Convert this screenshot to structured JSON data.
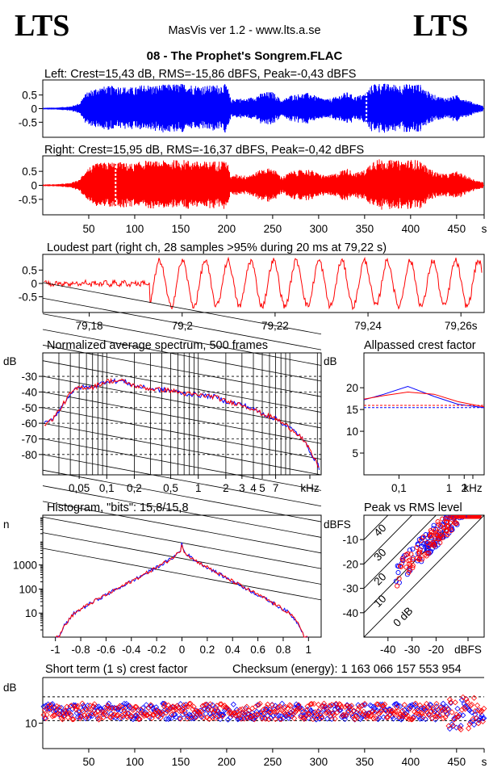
{
  "header": {
    "logo_left": "LTS",
    "logo_right": "LTS",
    "app_title": "MasVis ver 1.2 - www.lts.a.se",
    "file_title": "08 - The Prophet's Songrem.FLAC"
  },
  "colors": {
    "left_channel": "#0000ff",
    "right_channel": "#ff0000",
    "grid": "#000000"
  },
  "chart_data": [
    {
      "id": "left",
      "type": "area",
      "title": "Left: Crest=15,43 dB, RMS=-15,86 dBFS, Peak=-0,43 dBFS",
      "yticks": [
        "0.5",
        "0",
        "-0.5"
      ],
      "ylim": [
        -1,
        1
      ],
      "xlim": [
        0,
        480
      ],
      "envelope_t": [
        0,
        15,
        30,
        40,
        45,
        50,
        55,
        60,
        70,
        80,
        90,
        100,
        110,
        120,
        130,
        140,
        150,
        160,
        170,
        180,
        190,
        200,
        205,
        210,
        220,
        230,
        240,
        250,
        260,
        270,
        280,
        290,
        300,
        310,
        320,
        330,
        340,
        350,
        360,
        370,
        380,
        390,
        400,
        410,
        420,
        430,
        440,
        450,
        460,
        470,
        480
      ],
      "envelope_amp": [
        0.03,
        0.04,
        0.08,
        0.2,
        0.5,
        0.65,
        0.72,
        0.8,
        0.82,
        0.85,
        0.8,
        0.78,
        0.9,
        0.85,
        0.88,
        0.9,
        0.92,
        0.9,
        0.85,
        0.85,
        0.88,
        0.9,
        0.3,
        0.4,
        0.35,
        0.45,
        0.6,
        0.62,
        0.3,
        0.5,
        0.55,
        0.58,
        0.42,
        0.35,
        0.45,
        0.62,
        0.45,
        0.55,
        0.95,
        0.93,
        0.9,
        0.88,
        0.92,
        0.9,
        0.6,
        0.45,
        0.4,
        0.5,
        0.35,
        0.2,
        0.1
      ],
      "marker_s": 352
    },
    {
      "id": "right",
      "type": "area",
      "title": "Right: Crest=15,95 dB, RMS=-16,37 dBFS, Peak=-0,42 dBFS",
      "yticks": [
        "0.5",
        "0",
        "-0.5"
      ],
      "xticks": [
        "50",
        "100",
        "150",
        "200",
        "250",
        "300",
        "350",
        "400",
        "450",
        "s"
      ],
      "xtick_s": [
        50,
        100,
        150,
        200,
        250,
        300,
        350,
        400,
        450,
        480
      ],
      "ylim": [
        -1,
        1
      ],
      "xlim": [
        0,
        480
      ],
      "envelope_t": [
        0,
        15,
        30,
        40,
        45,
        50,
        55,
        60,
        70,
        80,
        90,
        100,
        110,
        120,
        130,
        140,
        150,
        160,
        170,
        180,
        190,
        200,
        205,
        210,
        220,
        230,
        240,
        250,
        260,
        270,
        280,
        290,
        300,
        310,
        320,
        330,
        340,
        350,
        360,
        370,
        380,
        390,
        400,
        410,
        420,
        430,
        440,
        450,
        460,
        470,
        480
      ],
      "envelope_amp": [
        0.03,
        0.04,
        0.08,
        0.2,
        0.5,
        0.65,
        0.72,
        0.8,
        0.82,
        0.85,
        0.8,
        0.78,
        0.9,
        0.85,
        0.88,
        0.9,
        0.92,
        0.9,
        0.85,
        0.85,
        0.88,
        0.9,
        0.3,
        0.4,
        0.35,
        0.45,
        0.6,
        0.62,
        0.3,
        0.5,
        0.55,
        0.58,
        0.42,
        0.35,
        0.45,
        0.62,
        0.45,
        0.55,
        0.95,
        0.93,
        0.9,
        0.88,
        0.92,
        0.9,
        0.6,
        0.45,
        0.4,
        0.5,
        0.35,
        0.2,
        0.1
      ],
      "marker_s": 79.22
    },
    {
      "id": "loudest",
      "type": "line",
      "title": "Loudest part (right ch, 28 samples >95% during 20 ms at 79,22 s)",
      "yticks": [
        "0.5",
        "0",
        "-0.5"
      ],
      "xticks": [
        "79,18",
        "79,2",
        "79,22",
        "79,24",
        "79,26s"
      ],
      "xtick_s": [
        79.18,
        79.2,
        79.22,
        79.24,
        79.26
      ],
      "xlim": [
        79.17,
        79.265
      ],
      "ylim": [
        -1,
        1
      ],
      "burst_start_s": 79.193,
      "period_s": 0.0049
    },
    {
      "id": "spectrum",
      "type": "line",
      "title": "Normalized average spectrum, 500 frames",
      "ylabel": "dB",
      "yticks": [
        "-30",
        "-40",
        "-50",
        "-60",
        "-70",
        "-80"
      ],
      "ytick_v": [
        -30,
        -40,
        -50,
        -60,
        -70,
        -80
      ],
      "xticks": [
        "0,05",
        "0,1",
        "0,2",
        "0,5",
        "1",
        "2",
        "3",
        "4",
        "5",
        "7",
        "kHz"
      ],
      "xtick_khz": [
        0.05,
        0.1,
        0.2,
        0.5,
        1,
        2,
        3,
        4,
        5,
        7
      ],
      "xlim": [
        0.02,
        22
      ],
      "ylim": [
        -93,
        -15
      ],
      "freq_khz": [
        0.02,
        0.025,
        0.03,
        0.04,
        0.05,
        0.07,
        0.1,
        0.15,
        0.2,
        0.3,
        0.5,
        0.7,
        1,
        1.5,
        2,
        3,
        4,
        5,
        7,
        10,
        13,
        16,
        20,
        22
      ],
      "db": [
        -61,
        -58,
        -52,
        -41,
        -37,
        -37,
        -33,
        -33,
        -36,
        -38,
        -39,
        -41,
        -42,
        -43,
        -46,
        -48,
        -51,
        -54,
        -57,
        -63,
        -68,
        -76,
        -86,
        -92
      ]
    },
    {
      "id": "allpass",
      "type": "line",
      "title": "Allpassed crest factor",
      "ylabel": "dB",
      "yticks": [
        "20",
        "15",
        "10",
        "5"
      ],
      "ytick_v": [
        20,
        15,
        10,
        5
      ],
      "xticks": [
        "0,1",
        "1",
        "2",
        "kHz"
      ],
      "xtick_khz": [
        0.1,
        1,
        2
      ],
      "xlim": [
        0.02,
        5
      ],
      "ylim": [
        0,
        28
      ],
      "freq_khz": [
        0.02,
        0.05,
        0.15,
        0.5,
        1.5,
        5
      ],
      "series": [
        {
          "name": "",
          "color": "#0000ff",
          "values": [
            17.2,
            18.5,
            20.3,
            18,
            16.2,
            15.4
          ],
          "ref": 15.43
        },
        {
          "name": "",
          "color": "#ff0000",
          "values": [
            17.4,
            18.2,
            19,
            18.5,
            16.8,
            15.6
          ],
          "ref": 15.95
        }
      ]
    },
    {
      "id": "histogram",
      "type": "line",
      "title": "Histogram, \"bits\": 15,8/15,8",
      "ylabel": "n",
      "yticks": [
        "1000",
        "100",
        "10"
      ],
      "ytick_v": [
        1000,
        100,
        10
      ],
      "xticks": [
        "-1",
        "-0.8",
        "-0.6",
        "-0.4",
        "-0.2",
        "0",
        "0.2",
        "0.4",
        "0.6",
        "0.8",
        "1"
      ],
      "xtick_v": [
        -1,
        -0.8,
        -0.6,
        -0.4,
        -0.2,
        0,
        0.2,
        0.4,
        0.6,
        0.8,
        1
      ],
      "xlim": [
        -1.1,
        1.1
      ],
      "ylog_range": [
        0,
        5
      ],
      "amp": [
        0,
        0.01,
        0.05,
        0.1,
        0.3,
        0.5,
        0.7,
        0.85,
        0.93,
        0.97
      ],
      "n": [
        10000,
        4000,
        2500,
        1600,
        400,
        110,
        30,
        10,
        3,
        1
      ]
    },
    {
      "id": "peakrms",
      "type": "scatter",
      "title": "Peak vs RMS level",
      "ylabel": "dBFS",
      "yticks": [
        "-10",
        "-20",
        "-30",
        "-40"
      ],
      "ytick_v": [
        -10,
        -20,
        -30,
        -40
      ],
      "xticks": [
        "-40",
        "-30",
        "-20",
        "dBFS"
      ],
      "xtick_v": [
        -40,
        -30,
        -20
      ],
      "diag_labels": [
        "40",
        "30",
        "20",
        "10",
        "0 dB"
      ],
      "diag_offsets": [
        40,
        30,
        20,
        10,
        0
      ],
      "xlim": [
        -50,
        0
      ],
      "ylim": [
        -50,
        0
      ],
      "crest_db": 12
    },
    {
      "id": "shortcrest",
      "type": "scatter",
      "title": "Short term (1 s) crest factor",
      "checksum": "Checksum (energy):  1 163 066 157 553 954",
      "ylabel": "dB",
      "yticks": [
        "10"
      ],
      "ytick_v": [
        10
      ],
      "xticks": [
        "50",
        "100",
        "150",
        "200",
        "250",
        "300",
        "350",
        "400",
        "450",
        "s"
      ],
      "xtick_s": [
        50,
        100,
        150,
        200,
        250,
        300,
        350,
        400,
        450,
        480
      ],
      "xlim": [
        0,
        480
      ],
      "ylim": [
        5,
        19
      ],
      "ref_lines": [
        10.5,
        15.2
      ],
      "mean_db": 12.3
    }
  ]
}
